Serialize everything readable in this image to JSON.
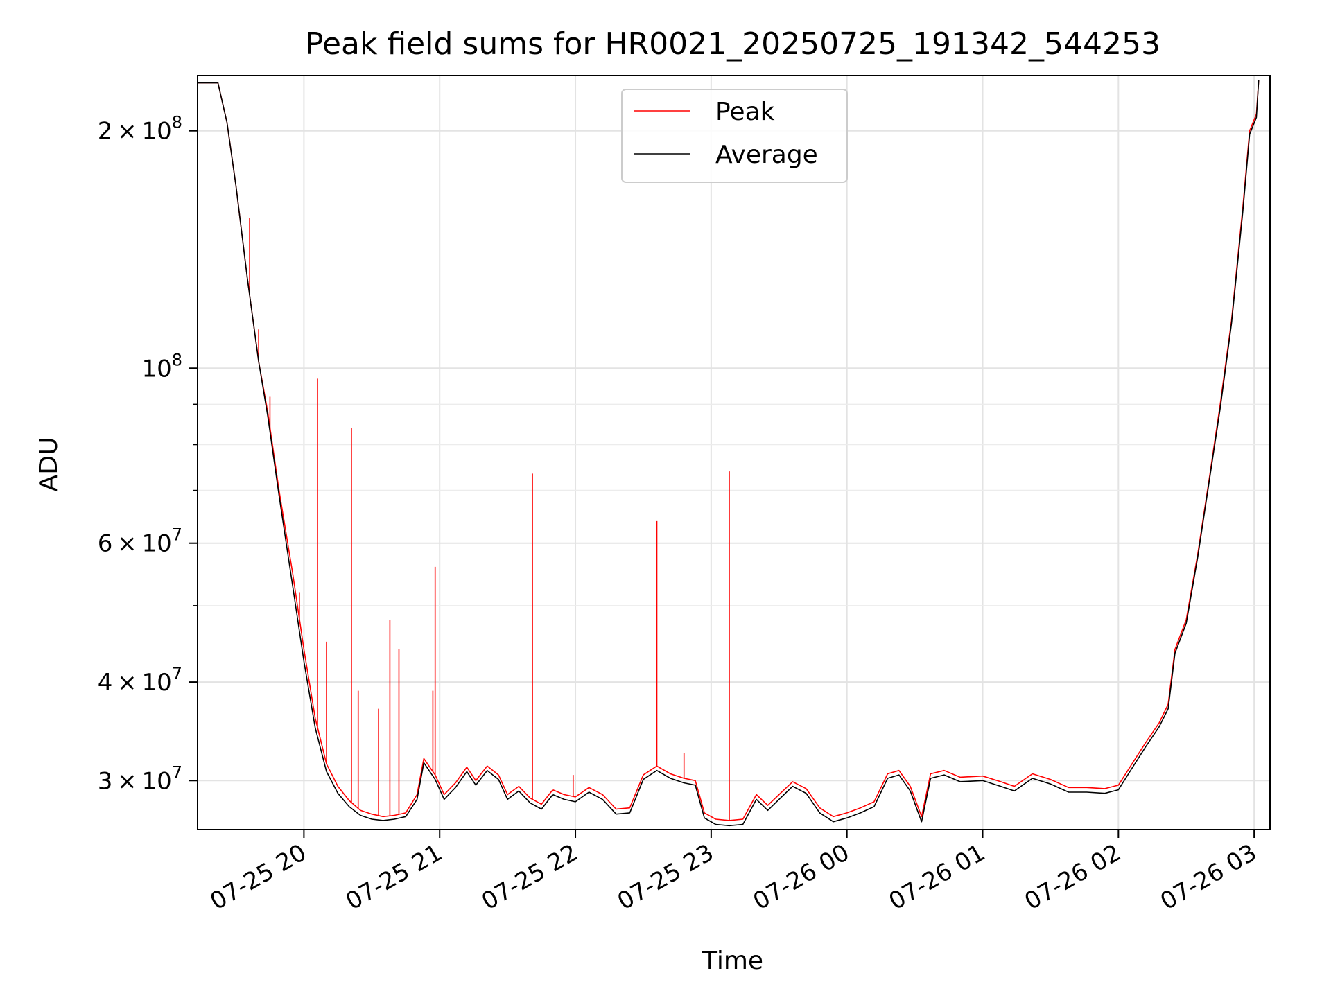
{
  "chart_data": {
    "type": "line",
    "title": "Peak field sums for HR0021_20250725_191342_544253",
    "xlabel": "Time",
    "ylabel": "ADU",
    "y_scale": "log",
    "ylim": [
      26000000,
      235000000
    ],
    "xlim": [
      "2025-07-25 19:13",
      "2025-07-26 03:07"
    ],
    "grid": true,
    "legend_position": "top-center",
    "x_ticks": [
      {
        "value": "2025-07-25 20:00",
        "label": "07-25 20"
      },
      {
        "value": "2025-07-25 21:00",
        "label": "07-25 21"
      },
      {
        "value": "2025-07-25 22:00",
        "label": "07-25 22"
      },
      {
        "value": "2025-07-25 23:00",
        "label": "07-25 23"
      },
      {
        "value": "2025-07-26 00:00",
        "label": "07-26 00"
      },
      {
        "value": "2025-07-26 01:00",
        "label": "07-26 01"
      },
      {
        "value": "2025-07-26 02:00",
        "label": "07-26 02"
      },
      {
        "value": "2025-07-26 03:00",
        "label": "07-26 03"
      }
    ],
    "y_ticks": [
      {
        "value": 30000000,
        "mant": "3",
        "exp": "7"
      },
      {
        "value": 40000000,
        "mant": "4",
        "exp": "7"
      },
      {
        "value": 60000000,
        "mant": "6",
        "exp": "7"
      },
      {
        "value": 100000000,
        "mant": "",
        "exp": "8"
      },
      {
        "value": 200000000,
        "mant": "2",
        "exp": "8"
      }
    ],
    "y_minor_ticks": [
      50000000,
      70000000,
      80000000,
      90000000
    ],
    "colors": {
      "peak": "#ff0000",
      "average": "#000000"
    },
    "series": [
      {
        "name": "Peak",
        "color": "#ff0000",
        "values": [
          [
            "2025-07-25 19:13",
            230000000
          ],
          [
            "2025-07-25 19:22",
            230000000
          ],
          [
            "2025-07-25 19:26",
            205000000
          ],
          [
            "2025-07-25 19:30",
            170000000
          ],
          [
            "2025-07-25 19:35",
            130000000
          ],
          [
            "2025-07-25 19:40",
            102000000
          ],
          [
            "2025-07-25 19:44",
            88000000
          ],
          [
            "2025-07-25 19:49",
            70000000
          ],
          [
            "2025-07-25 19:55",
            55000000
          ],
          [
            "2025-07-25 20:00",
            44000000
          ],
          [
            "2025-07-25 20:05",
            36000000
          ],
          [
            "2025-07-25 20:10",
            31500000
          ],
          [
            "2025-07-25 20:15",
            29500000
          ],
          [
            "2025-07-25 20:20",
            28300000
          ],
          [
            "2025-07-25 20:25",
            27500000
          ],
          [
            "2025-07-25 20:30",
            27200000
          ],
          [
            "2025-07-25 20:35",
            27000000
          ],
          [
            "2025-07-25 20:40",
            27100000
          ],
          [
            "2025-07-25 20:45",
            27300000
          ],
          [
            "2025-07-25 20:50",
            28800000
          ],
          [
            "2025-07-25 20:53",
            32000000
          ],
          [
            "2025-07-25 20:58",
            30500000
          ],
          [
            "2025-07-25 21:02",
            28800000
          ],
          [
            "2025-07-25 21:07",
            29800000
          ],
          [
            "2025-07-25 21:12",
            31200000
          ],
          [
            "2025-07-25 21:16",
            30000000
          ],
          [
            "2025-07-25 21:21",
            31300000
          ],
          [
            "2025-07-25 21:26",
            30500000
          ],
          [
            "2025-07-25 21:30",
            28800000
          ],
          [
            "2025-07-25 21:35",
            29500000
          ],
          [
            "2025-07-25 21:40",
            28500000
          ],
          [
            "2025-07-25 21:45",
            28000000
          ],
          [
            "2025-07-25 21:50",
            29200000
          ],
          [
            "2025-07-25 21:55",
            28800000
          ],
          [
            "2025-07-25 22:00",
            28600000
          ],
          [
            "2025-07-25 22:06",
            29400000
          ],
          [
            "2025-07-25 22:12",
            28800000
          ],
          [
            "2025-07-25 22:18",
            27600000
          ],
          [
            "2025-07-25 22:24",
            27700000
          ],
          [
            "2025-07-25 22:30",
            30500000
          ],
          [
            "2025-07-25 22:36",
            31300000
          ],
          [
            "2025-07-25 22:42",
            30600000
          ],
          [
            "2025-07-25 22:48",
            30200000
          ],
          [
            "2025-07-25 22:53",
            30000000
          ],
          [
            "2025-07-25 22:57",
            27300000
          ],
          [
            "2025-07-25 23:02",
            26800000
          ],
          [
            "2025-07-25 23:08",
            26700000
          ],
          [
            "2025-07-25 23:14",
            26800000
          ],
          [
            "2025-07-25 23:20",
            28800000
          ],
          [
            "2025-07-25 23:25",
            27900000
          ],
          [
            "2025-07-25 23:30",
            28800000
          ],
          [
            "2025-07-25 23:36",
            29900000
          ],
          [
            "2025-07-25 23:42",
            29300000
          ],
          [
            "2025-07-25 23:48",
            27700000
          ],
          [
            "2025-07-25 23:54",
            27000000
          ],
          [
            "2025-07-26 00:00",
            27300000
          ],
          [
            "2025-07-26 00:06",
            27700000
          ],
          [
            "2025-07-26 00:12",
            28200000
          ],
          [
            "2025-07-26 00:18",
            30600000
          ],
          [
            "2025-07-26 00:23",
            30900000
          ],
          [
            "2025-07-26 00:28",
            29500000
          ],
          [
            "2025-07-26 00:33",
            27000000
          ],
          [
            "2025-07-26 00:37",
            30600000
          ],
          [
            "2025-07-26 00:43",
            30900000
          ],
          [
            "2025-07-26 00:50",
            30300000
          ],
          [
            "2025-07-26 01:00",
            30400000
          ],
          [
            "2025-07-26 01:08",
            29900000
          ],
          [
            "2025-07-26 01:14",
            29500000
          ],
          [
            "2025-07-26 01:22",
            30600000
          ],
          [
            "2025-07-26 01:30",
            30100000
          ],
          [
            "2025-07-26 01:38",
            29400000
          ],
          [
            "2025-07-26 01:46",
            29400000
          ],
          [
            "2025-07-26 01:54",
            29300000
          ],
          [
            "2025-07-26 02:00",
            29600000
          ],
          [
            "2025-07-26 02:06",
            31500000
          ],
          [
            "2025-07-26 02:12",
            33500000
          ],
          [
            "2025-07-26 02:18",
            35500000
          ],
          [
            "2025-07-26 02:22",
            37500000
          ],
          [
            "2025-07-26 02:25",
            44000000
          ],
          [
            "2025-07-26 02:30",
            48000000
          ],
          [
            "2025-07-26 02:35",
            58000000
          ],
          [
            "2025-07-26 02:40",
            72000000
          ],
          [
            "2025-07-26 02:45",
            90000000
          ],
          [
            "2025-07-26 02:50",
            115000000
          ],
          [
            "2025-07-26 02:55",
            160000000
          ],
          [
            "2025-07-26 02:58",
            200000000
          ],
          [
            "2025-07-26 03:01",
            210000000
          ],
          [
            "2025-07-26 03:02",
            232000000
          ]
        ],
        "spikes": [
          [
            "2025-07-25 19:36",
            155000000
          ],
          [
            "2025-07-25 19:40",
            112000000
          ],
          [
            "2025-07-25 19:43",
            92000000
          ],
          [
            "2025-07-25 19:45",
            92000000
          ],
          [
            "2025-07-25 19:58",
            52000000
          ],
          [
            "2025-07-25 20:06",
            97000000
          ],
          [
            "2025-07-25 20:10",
            45000000
          ],
          [
            "2025-07-25 20:21",
            84000000
          ],
          [
            "2025-07-25 20:24",
            39000000
          ],
          [
            "2025-07-25 20:33",
            37000000
          ],
          [
            "2025-07-25 20:38",
            48000000
          ],
          [
            "2025-07-25 20:42",
            44000000
          ],
          [
            "2025-07-25 20:57",
            39000000
          ],
          [
            "2025-07-25 20:58",
            56000000
          ],
          [
            "2025-07-25 21:41",
            73500000
          ],
          [
            "2025-07-25 21:59",
            30500000
          ],
          [
            "2025-07-25 22:36",
            64000000
          ],
          [
            "2025-07-25 22:48",
            32500000
          ],
          [
            "2025-07-25 23:08",
            74000000
          ]
        ]
      },
      {
        "name": "Average",
        "color": "#000000",
        "values": [
          [
            "2025-07-25 19:13",
            230000000
          ],
          [
            "2025-07-25 19:22",
            230000000
          ],
          [
            "2025-07-25 19:26",
            205000000
          ],
          [
            "2025-07-25 19:30",
            170000000
          ],
          [
            "2025-07-25 19:35",
            130000000
          ],
          [
            "2025-07-25 19:40",
            102000000
          ],
          [
            "2025-07-25 19:44",
            87000000
          ],
          [
            "2025-07-25 19:49",
            69000000
          ],
          [
            "2025-07-25 19:55",
            53000000
          ],
          [
            "2025-07-25 20:00",
            42500000
          ],
          [
            "2025-07-25 20:05",
            35000000
          ],
          [
            "2025-07-25 20:10",
            30800000
          ],
          [
            "2025-07-25 20:15",
            28900000
          ],
          [
            "2025-07-25 20:20",
            27800000
          ],
          [
            "2025-07-25 20:25",
            27100000
          ],
          [
            "2025-07-25 20:30",
            26800000
          ],
          [
            "2025-07-25 20:35",
            26700000
          ],
          [
            "2025-07-25 20:40",
            26800000
          ],
          [
            "2025-07-25 20:45",
            27000000
          ],
          [
            "2025-07-25 20:50",
            28400000
          ],
          [
            "2025-07-25 20:53",
            31600000
          ],
          [
            "2025-07-25 20:58",
            30100000
          ],
          [
            "2025-07-25 21:02",
            28400000
          ],
          [
            "2025-07-25 21:07",
            29400000
          ],
          [
            "2025-07-25 21:12",
            30800000
          ],
          [
            "2025-07-25 21:16",
            29600000
          ],
          [
            "2025-07-25 21:21",
            30900000
          ],
          [
            "2025-07-25 21:26",
            30100000
          ],
          [
            "2025-07-25 21:30",
            28400000
          ],
          [
            "2025-07-25 21:35",
            29100000
          ],
          [
            "2025-07-25 21:40",
            28100000
          ],
          [
            "2025-07-25 21:45",
            27600000
          ],
          [
            "2025-07-25 21:50",
            28800000
          ],
          [
            "2025-07-25 21:55",
            28400000
          ],
          [
            "2025-07-25 22:00",
            28200000
          ],
          [
            "2025-07-25 22:06",
            29000000
          ],
          [
            "2025-07-25 22:12",
            28400000
          ],
          [
            "2025-07-25 22:18",
            27200000
          ],
          [
            "2025-07-25 22:24",
            27300000
          ],
          [
            "2025-07-25 22:30",
            30100000
          ],
          [
            "2025-07-25 22:36",
            30900000
          ],
          [
            "2025-07-25 22:42",
            30200000
          ],
          [
            "2025-07-25 22:48",
            29800000
          ],
          [
            "2025-07-25 22:53",
            29600000
          ],
          [
            "2025-07-25 22:57",
            26900000
          ],
          [
            "2025-07-25 23:02",
            26400000
          ],
          [
            "2025-07-25 23:08",
            26300000
          ],
          [
            "2025-07-25 23:14",
            26400000
          ],
          [
            "2025-07-25 23:20",
            28400000
          ],
          [
            "2025-07-25 23:25",
            27500000
          ],
          [
            "2025-07-25 23:30",
            28400000
          ],
          [
            "2025-07-25 23:36",
            29500000
          ],
          [
            "2025-07-25 23:42",
            28900000
          ],
          [
            "2025-07-25 23:48",
            27300000
          ],
          [
            "2025-07-25 23:54",
            26600000
          ],
          [
            "2025-07-26 00:00",
            26900000
          ],
          [
            "2025-07-26 00:06",
            27300000
          ],
          [
            "2025-07-26 00:12",
            27800000
          ],
          [
            "2025-07-26 00:18",
            30200000
          ],
          [
            "2025-07-26 00:23",
            30500000
          ],
          [
            "2025-07-26 00:28",
            29100000
          ],
          [
            "2025-07-26 00:33",
            26600000
          ],
          [
            "2025-07-26 00:37",
            30200000
          ],
          [
            "2025-07-26 00:43",
            30500000
          ],
          [
            "2025-07-26 00:50",
            29900000
          ],
          [
            "2025-07-26 01:00",
            30000000
          ],
          [
            "2025-07-26 01:08",
            29500000
          ],
          [
            "2025-07-26 01:14",
            29100000
          ],
          [
            "2025-07-26 01:22",
            30200000
          ],
          [
            "2025-07-26 01:30",
            29700000
          ],
          [
            "2025-07-26 01:38",
            29000000
          ],
          [
            "2025-07-26 01:46",
            29000000
          ],
          [
            "2025-07-26 01:54",
            28900000
          ],
          [
            "2025-07-26 02:00",
            29200000
          ],
          [
            "2025-07-26 02:06",
            31100000
          ],
          [
            "2025-07-26 02:12",
            33100000
          ],
          [
            "2025-07-26 02:18",
            35100000
          ],
          [
            "2025-07-26 02:22",
            37000000
          ],
          [
            "2025-07-26 02:25",
            43500000
          ],
          [
            "2025-07-26 02:30",
            47500000
          ],
          [
            "2025-07-26 02:35",
            57500000
          ],
          [
            "2025-07-26 02:40",
            71500000
          ],
          [
            "2025-07-26 02:45",
            89000000
          ],
          [
            "2025-07-26 02:50",
            114000000
          ],
          [
            "2025-07-26 02:55",
            158000000
          ],
          [
            "2025-07-26 02:58",
            198000000
          ],
          [
            "2025-07-26 03:01",
            208000000
          ],
          [
            "2025-07-26 03:02",
            232000000
          ]
        ]
      }
    ]
  }
}
